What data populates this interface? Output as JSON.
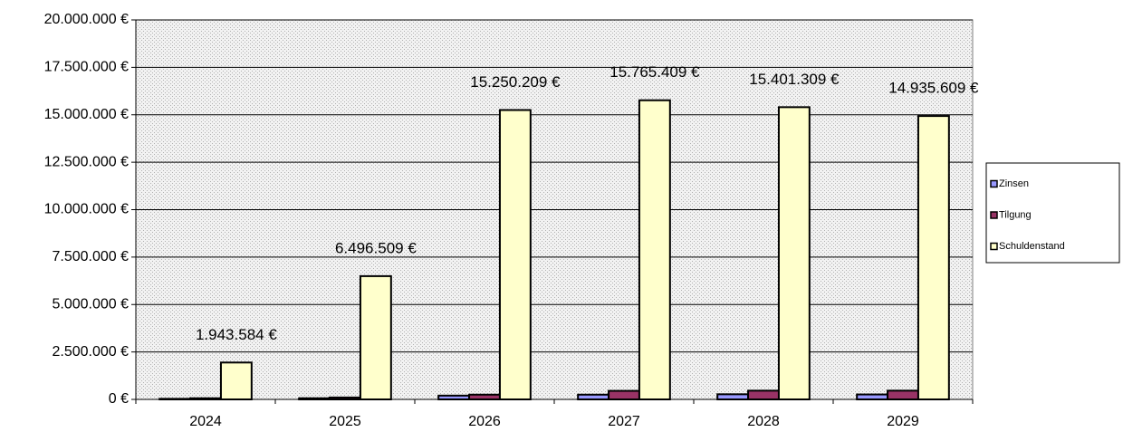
{
  "chart_data": {
    "type": "bar",
    "categories": [
      "2024",
      "2025",
      "2026",
      "2027",
      "2028",
      "2029"
    ],
    "series": [
      {
        "name": "Zinsen",
        "color": "#9999ff",
        "values": [
          30000,
          60000,
          200000,
          250000,
          270000,
          260000
        ]
      },
      {
        "name": "Tilgung",
        "color": "#993366",
        "values": [
          60000,
          100000,
          250000,
          450000,
          460000,
          460000
        ]
      },
      {
        "name": "Schuldenstand",
        "color": "#ffffcc",
        "values": [
          1943584,
          6496509,
          15250209,
          15765409,
          15401309,
          14935609
        ],
        "value_labels": [
          "1.943.584 €",
          "6.496.509 €",
          "15.250.209 €",
          "15.765.409 €",
          "15.401.309 €",
          "14.935.609 €"
        ]
      }
    ],
    "ylim": [
      0,
      20000000
    ],
    "yticks": [
      {
        "value": 0,
        "label": "0 €"
      },
      {
        "value": 2500000,
        "label": "2.500.000 €"
      },
      {
        "value": 5000000,
        "label": "5.000.000 €"
      },
      {
        "value": 7500000,
        "label": "7.500.000 €"
      },
      {
        "value": 10000000,
        "label": "10.000.000 €"
      },
      {
        "value": 12500000,
        "label": "12.500.000 €"
      },
      {
        "value": 15000000,
        "label": "15.000.000 €"
      },
      {
        "value": 17500000,
        "label": "17.500.000 €"
      },
      {
        "value": 20000000,
        "label": "20.000.000 €"
      }
    ],
    "grid": true,
    "legend": "right"
  }
}
